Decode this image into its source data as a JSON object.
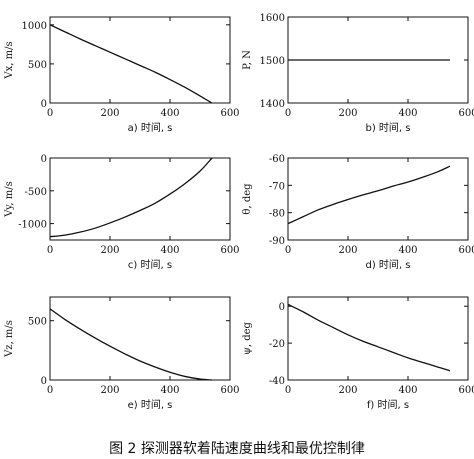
{
  "caption": "图 2 探测器软着陆速度曲线和最优控制律",
  "chart_data": [
    {
      "id": "a",
      "type": "line",
      "ylabel": "Vx, m/s",
      "xlabel": "a)    时间,  s",
      "xlim": [
        0,
        600
      ],
      "ylim": [
        0,
        1100
      ],
      "xticks": [
        0,
        200,
        400,
        600
      ],
      "yticks": [
        0,
        500,
        1000
      ],
      "grid": false,
      "series": [
        {
          "x": [
            0,
            50,
            100,
            150,
            200,
            250,
            300,
            350,
            400,
            450,
            500,
            540
          ],
          "y": [
            1000,
            910,
            820,
            735,
            650,
            565,
            480,
            395,
            300,
            200,
            90,
            0
          ]
        }
      ]
    },
    {
      "id": "b",
      "type": "line",
      "ylabel": "P, N",
      "xlabel": "b)    时间,  s",
      "xlim": [
        0,
        600
      ],
      "ylim": [
        1400,
        1600
      ],
      "xticks": [
        0,
        200,
        400,
        600
      ],
      "yticks": [
        1400,
        1500,
        1600
      ],
      "grid": false,
      "series": [
        {
          "x": [
            0,
            540
          ],
          "y": [
            1500,
            1500
          ]
        }
      ]
    },
    {
      "id": "c",
      "type": "line",
      "ylabel": "Vy, m/s",
      "xlabel": "c)    时间,  s",
      "xlim": [
        0,
        600
      ],
      "ylim": [
        -1250,
        0
      ],
      "xticks": [
        0,
        200,
        400,
        600
      ],
      "yticks": [
        -1000,
        -500,
        0
      ],
      "grid": false,
      "series": [
        {
          "x": [
            0,
            50,
            100,
            150,
            200,
            250,
            300,
            350,
            400,
            450,
            500,
            540
          ],
          "y": [
            -1200,
            -1175,
            -1130,
            -1070,
            -990,
            -900,
            -800,
            -690,
            -550,
            -390,
            -200,
            0
          ]
        }
      ]
    },
    {
      "id": "d",
      "type": "line",
      "ylabel": "θ,  deg",
      "xlabel": "d)    时间,  s",
      "xlim": [
        0,
        600
      ],
      "ylim": [
        -90,
        -60
      ],
      "xticks": [
        0,
        200,
        400,
        600
      ],
      "yticks": [
        -90,
        -80,
        -70,
        -60
      ],
      "grid": false,
      "series": [
        {
          "x": [
            0,
            50,
            100,
            150,
            200,
            250,
            300,
            350,
            400,
            450,
            500,
            540
          ],
          "y": [
            -84,
            -81.5,
            -79,
            -77,
            -75.2,
            -73.5,
            -72,
            -70.3,
            -68.8,
            -67,
            -65,
            -63
          ]
        }
      ]
    },
    {
      "id": "e",
      "type": "line",
      "ylabel": "Vz, m/s",
      "xlabel": "e)    时间,  s",
      "xlim": [
        0,
        600
      ],
      "ylim": [
        0,
        700
      ],
      "xticks": [
        0,
        200,
        400,
        600
      ],
      "yticks": [
        0,
        500
      ],
      "grid": false,
      "series": [
        {
          "x": [
            0,
            50,
            100,
            150,
            200,
            250,
            300,
            350,
            400,
            450,
            500,
            540
          ],
          "y": [
            600,
            510,
            430,
            355,
            285,
            220,
            160,
            110,
            65,
            30,
            8,
            0
          ]
        }
      ]
    },
    {
      "id": "f",
      "type": "line",
      "ylabel": "ψ,  deg",
      "xlabel": "f)    时间,  s",
      "xlim": [
        0,
        600
      ],
      "ylim": [
        -40,
        5
      ],
      "xticks": [
        0,
        200,
        400,
        600
      ],
      "yticks": [
        -40,
        -20,
        0
      ],
      "grid": false,
      "series": [
        {
          "x": [
            0,
            50,
            100,
            150,
            200,
            250,
            300,
            350,
            400,
            450,
            500,
            540
          ],
          "y": [
            1,
            -3,
            -7.5,
            -11.5,
            -15.5,
            -19,
            -22,
            -25,
            -28,
            -30.5,
            -33,
            -35
          ]
        }
      ]
    }
  ]
}
